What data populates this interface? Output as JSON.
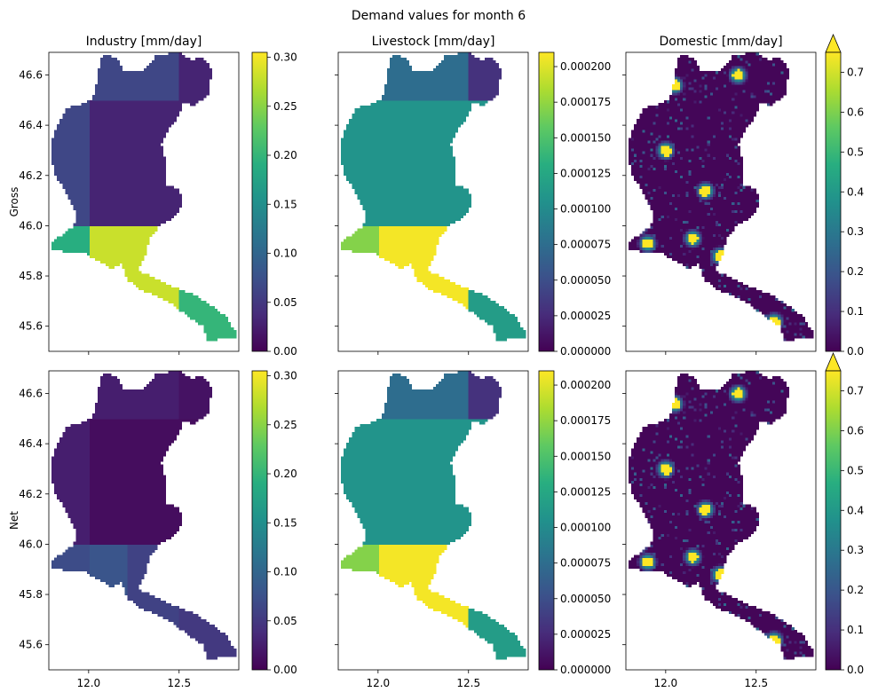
{
  "figure": {
    "title": "Demand values for month 6"
  },
  "chart_data": {
    "type": "heatmap",
    "row_labels": [
      "Gross",
      "Net"
    ],
    "x_ticks": [
      12.0,
      12.5
    ],
    "x_tick_labels": [
      "12.0",
      "12.5"
    ],
    "y_ticks": [
      45.6,
      45.8,
      46.0,
      46.2,
      46.4,
      46.6
    ],
    "y_tick_labels": [
      "45.6",
      "45.8",
      "46.0",
      "46.2",
      "46.4",
      "46.6"
    ],
    "xlim": [
      11.78,
      12.83
    ],
    "ylim": [
      45.5,
      46.69
    ],
    "colormap": "viridis",
    "panels": [
      {
        "row": "Gross",
        "title": "Industry [mm/day]",
        "vmin": 0,
        "vmax": 0.305,
        "extend": "neither",
        "cbar_ticks": [
          0.0,
          0.05,
          0.1,
          0.15,
          0.2,
          0.25,
          0.3
        ],
        "cbar_tick_labels": [
          "0.00",
          "0.05",
          "0.10",
          "0.15",
          "0.20",
          "0.25",
          "0.30"
        ],
        "zones": {
          "ne": 0.03,
          "nw": 0.065,
          "center": 0.03,
          "west": 0.065,
          "sw": 0.19,
          "s": 0.28,
          "se_mid": 0.28,
          "se_east": 0.2
        }
      },
      {
        "row": "Gross",
        "title": "Livestock [mm/day]",
        "vmin": 0,
        "vmax": 0.00021,
        "extend": "neither",
        "cbar_ticks": [
          0.0,
          2.5e-05,
          5e-05,
          7.5e-05,
          0.0001,
          0.000125,
          0.00015,
          0.000175,
          0.0002
        ],
        "cbar_tick_labels": [
          "0.000000",
          "0.000025",
          "0.000050",
          "0.000075",
          "0.000100",
          "0.000125",
          "0.000150",
          "0.000175",
          "0.000200"
        ],
        "zones": {
          "ne": 3e-05,
          "nw": 7.5e-05,
          "center": 0.000108,
          "west": 0.000108,
          "sw": 0.00017,
          "s": 0.000207,
          "se_mid": 0.000207,
          "se_east": 0.000115
        }
      },
      {
        "row": "Gross",
        "title": "Domestic [mm/day]",
        "vmin": 0,
        "vmax": 0.75,
        "extend": "max",
        "cbar_ticks": [
          0.0,
          0.1,
          0.2,
          0.3,
          0.4,
          0.5,
          0.6,
          0.7
        ],
        "cbar_tick_labels": [
          "0.0",
          "0.1",
          "0.2",
          "0.3",
          "0.4",
          "0.5",
          "0.6",
          "0.7"
        ],
        "base": 0.01
      },
      {
        "row": "Net",
        "title": "",
        "vmin": 0,
        "vmax": 0.305,
        "extend": "neither",
        "cbar_ticks": [
          0.0,
          0.05,
          0.1,
          0.15,
          0.2,
          0.25,
          0.3
        ],
        "cbar_tick_labels": [
          "0.00",
          "0.05",
          "0.10",
          "0.15",
          "0.20",
          "0.25",
          "0.30"
        ],
        "zones": {
          "ne": 0.015,
          "nw": 0.025,
          "center": 0.01,
          "west": 0.025,
          "sw": 0.07,
          "s": 0.08,
          "se_mid": 0.06,
          "se_east": 0.05
        }
      },
      {
        "row": "Net",
        "title": "",
        "vmin": 0,
        "vmax": 0.00021,
        "extend": "neither",
        "cbar_ticks": [
          0.0,
          2.5e-05,
          5e-05,
          7.5e-05,
          0.0001,
          0.000125,
          0.00015,
          0.000175,
          0.0002
        ],
        "cbar_tick_labels": [
          "0.000000",
          "0.000025",
          "0.000050",
          "0.000075",
          "0.000100",
          "0.000125",
          "0.000150",
          "0.000175",
          "0.000200"
        ],
        "zones": {
          "ne": 3e-05,
          "nw": 7.5e-05,
          "center": 0.000108,
          "west": 0.000108,
          "sw": 0.00017,
          "s": 0.000207,
          "se_mid": 0.000207,
          "se_east": 0.000115
        }
      },
      {
        "row": "Net",
        "title": "",
        "vmin": 0,
        "vmax": 0.75,
        "extend": "max",
        "cbar_ticks": [
          0.0,
          0.1,
          0.2,
          0.3,
          0.4,
          0.5,
          0.6,
          0.7
        ],
        "cbar_tick_labels": [
          "0.0",
          "0.1",
          "0.2",
          "0.3",
          "0.4",
          "0.5",
          "0.6",
          "0.7"
        ],
        "base": 0.01
      }
    ]
  }
}
